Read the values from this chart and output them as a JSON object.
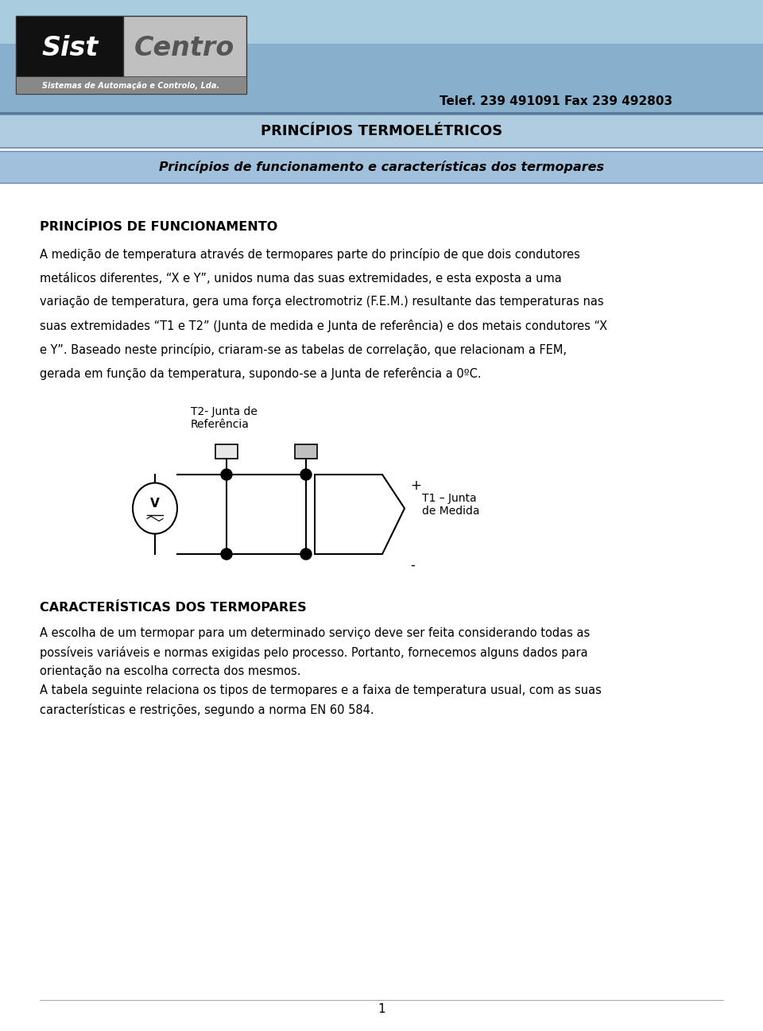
{
  "header_bg_color": "#88b0cc",
  "title_bar1_color": "#b0cce0",
  "title_bar2_color": "#a0c0dc",
  "title_bar1_text": "PRINCÍPIOS TERMOELÉTRICOS",
  "title_bar2_text": "Princípios de funcionamento e características dos termopares",
  "telef_text": "Telef. 239 491091 Fax 239 492803",
  "section1_title": "PRINCÍPIOS DE FUNCIONAMENTO",
  "diagram_label_t2": "T2- Junta de\nReferência",
  "diagram_label_t1": "T1 – Junta\nde Medida",
  "diagram_plus": "+",
  "diagram_minus": "-",
  "section2_title": "CARACTERÍSTICAS DOS TERMOPARES",
  "page_number": "1",
  "white_bg": "#ffffff",
  "black": "#000000",
  "body1_lines": [
    "A medição de temperatura através de termopares parte do princípio de que dois condutores",
    "metálicos diferentes, “X e Y”, unidos numa das suas extremidades, e esta exposta a uma",
    "variação de temperatura, gera uma força electromotriz (F.E.M.) resultante das temperaturas nas",
    "suas extremidades “T1 e T2” (Junta de medida e Junta de referência) e dos metais condutores “X",
    "e Y”. Baseado neste princípio, criaram-se as tabelas de correlação, que relacionam a FEM,",
    "gerada em função da temperatura, supondo-se a Junta de referência a 0ºC."
  ],
  "body2_lines": [
    "A escolha de um termopar para um determinado serviço deve ser feita considerando todas as",
    "possíveis variáveis e normas exigidas pelo processo. Portanto, fornecemos alguns dados para",
    "orientação na escolha correcta dos mesmos."
  ],
  "body3_lines": [
    "A tabela seguinte relaciona os tipos de termopares e a faixa de temperatura usual, com as suas",
    "características e restrições, segundo a norma EN 60 584."
  ]
}
